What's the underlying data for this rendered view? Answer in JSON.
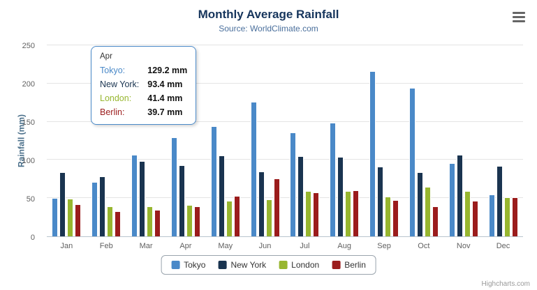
{
  "credits": "Highcharts.com",
  "chart_data": {
    "type": "bar",
    "title": "Monthly Average Rainfall",
    "subtitle": "Source: WorldClimate.com",
    "xlabel": "",
    "ylabel": "Rainfall (mm)",
    "ylim": [
      0,
      250
    ],
    "yticks": [
      0,
      50,
      100,
      150,
      200,
      250
    ],
    "grid": true,
    "legend_position": "bottom",
    "categories": [
      "Jan",
      "Feb",
      "Mar",
      "Apr",
      "May",
      "Jun",
      "Jul",
      "Aug",
      "Sep",
      "Oct",
      "Nov",
      "Dec"
    ],
    "series": [
      {
        "name": "Tokyo",
        "color": "#4a89c8",
        "values": [
          49.9,
          71.5,
          106.4,
          129.2,
          144.0,
          176.0,
          135.6,
          148.5,
          216.4,
          194.1,
          95.6,
          54.4
        ]
      },
      {
        "name": "New York",
        "color": "#1a3450",
        "values": [
          83.6,
          78.8,
          98.5,
          93.4,
          106.0,
          84.5,
          105.0,
          104.3,
          91.2,
          83.5,
          106.6,
          92.3
        ]
      },
      {
        "name": "London",
        "color": "#97b62f",
        "values": [
          48.9,
          38.8,
          39.3,
          41.4,
          47.0,
          48.3,
          59.0,
          59.6,
          52.4,
          65.2,
          59.3,
          51.2
        ]
      },
      {
        "name": "Berlin",
        "color": "#9b1c1c",
        "values": [
          42.4,
          33.2,
          34.5,
          39.7,
          52.6,
          75.5,
          57.4,
          60.4,
          47.6,
          39.1,
          46.8,
          51.1
        ]
      }
    ]
  },
  "tooltip": {
    "header": "Apr",
    "border_color": "#4a89c8",
    "rows": [
      {
        "label": "Tokyo:",
        "value": "129.2 mm",
        "color": "#4a89c8"
      },
      {
        "label": "New York:",
        "value": "93.4 mm",
        "color": "#1a3450"
      },
      {
        "label": "London:",
        "value": "41.4 mm",
        "color": "#97b62f"
      },
      {
        "label": "Berlin:",
        "value": "39.7 mm",
        "color": "#9b1c1c"
      }
    ]
  },
  "legend": {
    "items": [
      "Tokyo",
      "New York",
      "London",
      "Berlin"
    ]
  }
}
